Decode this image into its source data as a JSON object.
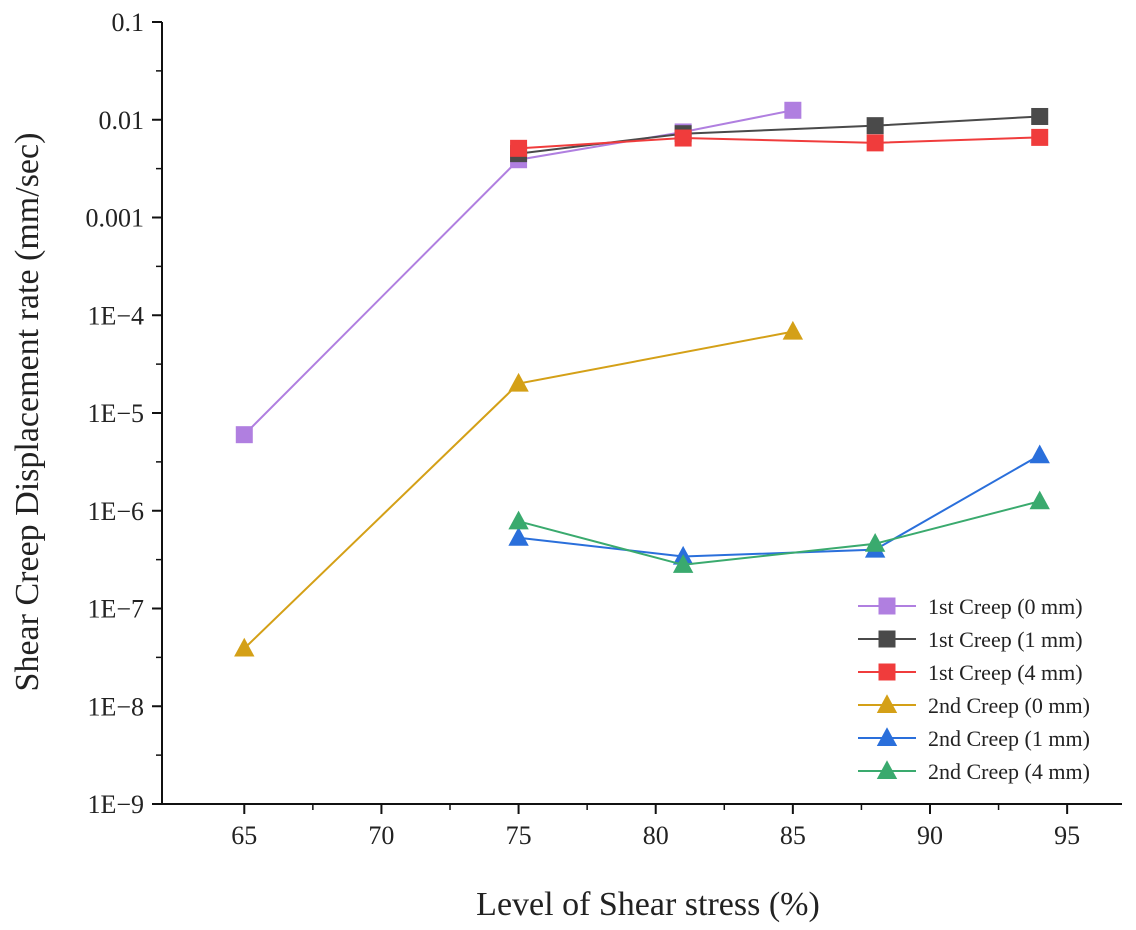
{
  "chart_data": {
    "type": "line",
    "title": "",
    "xlabel": "Level of Shear stress (%)",
    "ylabel": "Shear Creep Displacement rate (mm/sec)",
    "xlim": [
      62,
      97
    ],
    "ylim": [
      1e-09,
      0.1
    ],
    "yscale": "log",
    "xticks": [
      65,
      70,
      75,
      80,
      85,
      90,
      95
    ],
    "yticks": [
      {
        "value": 1e-09,
        "label": "1E−9"
      },
      {
        "value": 1e-08,
        "label": "1E−8"
      },
      {
        "value": 1e-07,
        "label": "1E−7"
      },
      {
        "value": 1e-06,
        "label": "1E−6"
      },
      {
        "value": 1e-05,
        "label": "1E−5"
      },
      {
        "value": 0.0001,
        "label": "1E−4"
      },
      {
        "value": 0.001,
        "label": "0.001"
      },
      {
        "value": 0.01,
        "label": "0.01"
      },
      {
        "value": 0.1,
        "label": "0.1"
      }
    ],
    "grid": false,
    "legend_position": "bottom-right",
    "series": [
      {
        "name": "1st Creep (0 mm)",
        "color": "#b07fe0",
        "marker": "square",
        "x": [
          65,
          75,
          81,
          85
        ],
        "y": [
          6e-06,
          0.0039,
          0.0075,
          0.0125
        ]
      },
      {
        "name": "1st Creep (1 mm)",
        "color": "#4a4a4a",
        "marker": "square",
        "x": [
          75,
          81,
          88,
          94
        ],
        "y": [
          0.0045,
          0.0072,
          0.0087,
          0.0108
        ]
      },
      {
        "name": "1st Creep (4 mm)",
        "color": "#f03c3c",
        "marker": "square",
        "x": [
          75,
          81,
          88,
          94
        ],
        "y": [
          0.0051,
          0.0065,
          0.0058,
          0.0066
        ]
      },
      {
        "name": "2nd Creep (0 mm)",
        "color": "#d4a017",
        "marker": "triangle",
        "x": [
          65,
          75,
          85
        ],
        "y": [
          3.9e-08,
          2e-05,
          6.8e-05
        ]
      },
      {
        "name": "2nd Creep (1 mm)",
        "color": "#2a6fdb",
        "marker": "triangle",
        "x": [
          75,
          81,
          88,
          94
        ],
        "y": [
          5.3e-07,
          3.4e-07,
          4e-07,
          3.7e-06
        ]
      },
      {
        "name": "2nd Creep (4 mm)",
        "color": "#3aaa6e",
        "marker": "triangle",
        "x": [
          75,
          81,
          88,
          94
        ],
        "y": [
          7.8e-07,
          2.8e-07,
          4.6e-07,
          1.25e-06
        ]
      }
    ]
  }
}
